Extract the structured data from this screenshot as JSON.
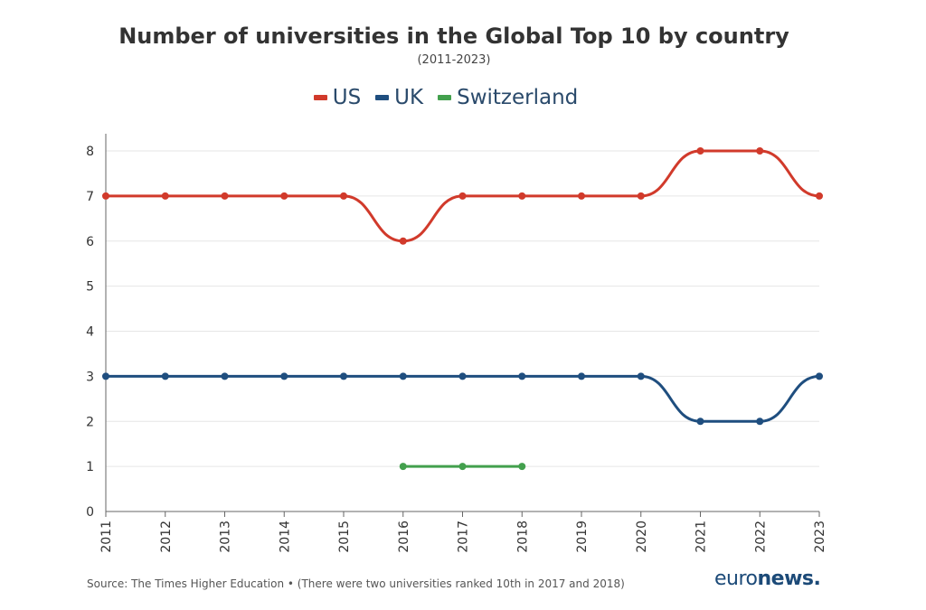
{
  "header": {
    "title": "Number of universities in the Global Top 10 by country",
    "subtitle": "(2011-2023)"
  },
  "footer": {
    "source": "Source: The Times Higher Education • (There were two universities ranked 10th in 2017 and 2018)",
    "brand_light": "euro",
    "brand_bold": "news.",
    "brand_color": "#1c4a78"
  },
  "chart_data": {
    "type": "line",
    "title": "Number of universities in the Global Top 10 by country",
    "subtitle": "(2011-2023)",
    "xlabel": "",
    "ylabel": "",
    "x": [
      2011,
      2012,
      2013,
      2014,
      2015,
      2016,
      2017,
      2018,
      2019,
      2020,
      2021,
      2022,
      2023
    ],
    "ylim": [
      0,
      8
    ],
    "yticks": [
      0,
      1,
      2,
      3,
      4,
      5,
      6,
      7,
      8
    ],
    "grid": true,
    "legend_position": "top-center",
    "series": [
      {
        "name": "US",
        "color": "#d13a2b",
        "values": [
          7,
          7,
          7,
          7,
          7,
          6,
          7,
          7,
          7,
          7,
          8,
          8,
          7
        ]
      },
      {
        "name": "UK",
        "color": "#1f4e7f",
        "values": [
          3,
          3,
          3,
          3,
          3,
          3,
          3,
          3,
          3,
          3,
          2,
          2,
          3
        ]
      },
      {
        "name": "Switzerland",
        "color": "#43a04d",
        "values": [
          null,
          null,
          null,
          null,
          null,
          1,
          1,
          1,
          null,
          null,
          null,
          null,
          null
        ]
      }
    ]
  }
}
